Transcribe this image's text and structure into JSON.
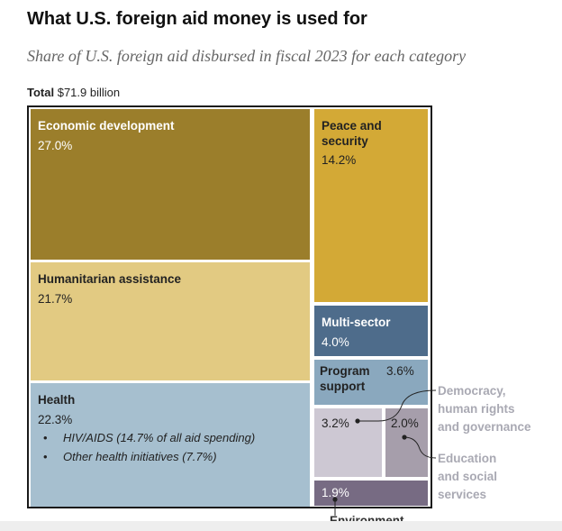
{
  "title": "What U.S. foreign aid money is used for",
  "subtitle": "Share of U.S. foreign aid disbursed in fiscal 2023 for each category",
  "total_label": "Total",
  "total_value": "$71.9 billion",
  "chart_data": {
    "type": "treemap",
    "title": "What U.S. foreign aid money is used for",
    "subtitle": "Share of U.S. foreign aid disbursed in fiscal 2023 for each category",
    "total": "$71.9 billion",
    "units": "percent of total",
    "items": [
      {
        "name": "Economic development",
        "value": 27.0,
        "label": "27.0%",
        "color": "#9b7e2b",
        "text_color": "#ffffff"
      },
      {
        "name": "Humanitarian assistance",
        "value": 21.7,
        "label": "21.7%",
        "color": "#e2ca82",
        "text_color": "#222222"
      },
      {
        "name": "Health",
        "value": 22.3,
        "label": "22.3%",
        "color": "#a6bfcf",
        "text_color": "#222222",
        "children": [
          {
            "name": "HIV/AIDS",
            "text": "HIV/AIDS (14.7% of all aid spending)",
            "value": 14.7
          },
          {
            "name": "Other health initiatives",
            "text": "Other health initiatives (7.7%)",
            "value": 7.7
          }
        ]
      },
      {
        "name": "Peace and security",
        "label_lines": [
          "Peace and",
          "security"
        ],
        "value": 14.2,
        "label": "14.2%",
        "color": "#d3a936",
        "text_color": "#222222"
      },
      {
        "name": "Multi-sector",
        "value": 4.0,
        "label": "4.0%",
        "color": "#4e6c8b",
        "text_color": "#ffffff"
      },
      {
        "name": "Program support",
        "label_lines": [
          "Program",
          "support"
        ],
        "value": 3.6,
        "label": "3.6%",
        "color": "#8aa8be",
        "text_color": "#222222"
      },
      {
        "name": "Democracy, human rights and governance",
        "label_lines": [
          "Democracy,",
          "human rights",
          "and governance"
        ],
        "value": 3.2,
        "label": "3.2%",
        "color": "#cdc8d3",
        "text_color": "#222222"
      },
      {
        "name": "Education and social services",
        "label_lines": [
          "Education",
          "and social",
          "services"
        ],
        "value": 2.0,
        "label": "2.0%",
        "color": "#a69eab",
        "text_color": "#222222"
      },
      {
        "name": "Environment",
        "value": 1.9,
        "label": "1.9%",
        "color": "#776b83",
        "text_color": "#ffffff"
      }
    ]
  }
}
